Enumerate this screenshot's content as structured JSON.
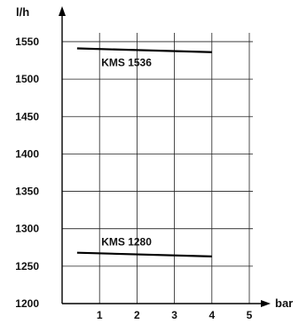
{
  "chart_data": {
    "type": "line",
    "ylabel": "l/h",
    "xlabel": "bar",
    "xlim": [
      0,
      5
    ],
    "ylim": [
      1200,
      1550
    ],
    "xticks": [
      "1",
      "2",
      "3",
      "4",
      "5"
    ],
    "yticks": [
      "1200",
      "1250",
      "1300",
      "1350",
      "1400",
      "1450",
      "1500",
      "1550"
    ],
    "grid": true,
    "series": [
      {
        "name": "KMS 1536",
        "x": [
          0.4,
          4.0
        ],
        "y": [
          1541,
          1536
        ]
      },
      {
        "name": "KMS 1280",
        "x": [
          0.4,
          4.0
        ],
        "y": [
          1268,
          1263
        ]
      }
    ]
  }
}
